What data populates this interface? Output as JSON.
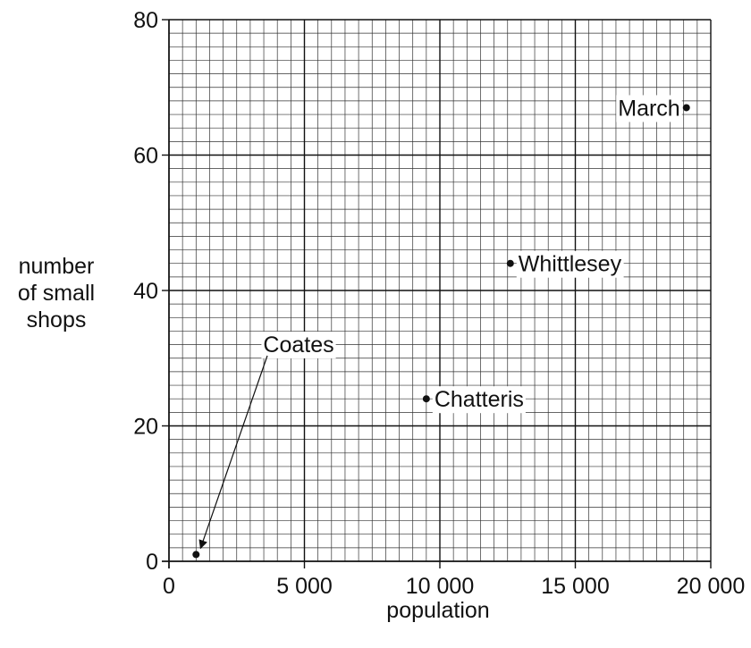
{
  "chart_data": {
    "type": "scatter",
    "title": "",
    "xlabel": "population",
    "ylabel": [
      "number",
      "of small",
      "shops"
    ],
    "xlim": [
      0,
      20000
    ],
    "ylim": [
      0,
      80
    ],
    "x_ticks": [
      0,
      5000,
      10000,
      15000,
      20000
    ],
    "x_tick_labels": [
      "0",
      "5 000",
      "10 000",
      "15 000",
      "20 000"
    ],
    "y_ticks": [
      0,
      20,
      40,
      60,
      80
    ],
    "y_tick_labels": [
      "0",
      "20",
      "40",
      "60",
      "80"
    ],
    "grid": true,
    "points": [
      {
        "label": "Coates",
        "x": 1000,
        "y": 1
      },
      {
        "label": "Chatteris",
        "x": 9500,
        "y": 24
      },
      {
        "label": "Whittlesey",
        "x": 12600,
        "y": 44
      },
      {
        "label": "March",
        "x": 19100,
        "y": 67
      }
    ]
  }
}
